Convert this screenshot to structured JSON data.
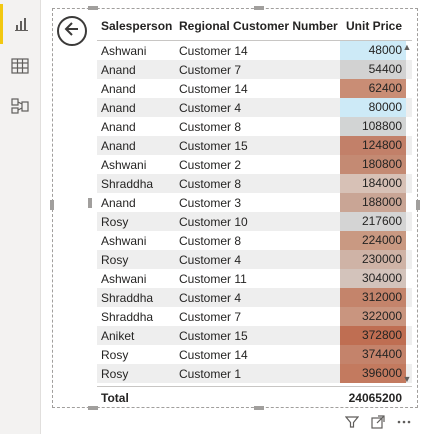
{
  "table": {
    "headers": [
      "Salesperson",
      "Regional Customer Number",
      "Unit Price"
    ],
    "rows": [
      {
        "salesperson": "Ashwani",
        "customer": "Customer 14",
        "price": "48000",
        "color": "#cdeaf7"
      },
      {
        "salesperson": "Anand",
        "customer": "Customer 7",
        "price": "54400",
        "color": "#d2d2d2"
      },
      {
        "salesperson": "Anand",
        "customer": "Customer 14",
        "price": "62400",
        "color": "#c98d75"
      },
      {
        "salesperson": "Anand",
        "customer": "Customer 4",
        "price": "80000",
        "color": "#cdeaf7"
      },
      {
        "salesperson": "Anand",
        "customer": "Customer 8",
        "price": "108800",
        "color": "#d2d4d4"
      },
      {
        "salesperson": "Anand",
        "customer": "Customer 15",
        "price": "124800",
        "color": "#c28069"
      },
      {
        "salesperson": "Ashwani",
        "customer": "Customer 2",
        "price": "180800",
        "color": "#c48a73"
      },
      {
        "salesperson": "Shraddha",
        "customer": "Customer 8",
        "price": "184000",
        "color": "#d7c1b6"
      },
      {
        "salesperson": "Anand",
        "customer": "Customer 3",
        "price": "188000",
        "color": "#c9a595"
      },
      {
        "salesperson": "Rosy",
        "customer": "Customer 10",
        "price": "217600",
        "color": "#d4d4d4"
      },
      {
        "salesperson": "Ashwani",
        "customer": "Customer 8",
        "price": "224000",
        "color": "#c99982"
      },
      {
        "salesperson": "Rosy",
        "customer": "Customer 4",
        "price": "230000",
        "color": "#cfb3a6"
      },
      {
        "salesperson": "Ashwani",
        "customer": "Customer 11",
        "price": "304000",
        "color": "#d3c3bb"
      },
      {
        "salesperson": "Shraddha",
        "customer": "Customer 4",
        "price": "312000",
        "color": "#c4846b"
      },
      {
        "salesperson": "Shraddha",
        "customer": "Customer 7",
        "price": "322000",
        "color": "#c9957f"
      },
      {
        "salesperson": "Aniket",
        "customer": "Customer 15",
        "price": "372800",
        "color": "#bf6e52"
      },
      {
        "salesperson": "Rosy",
        "customer": "Customer 14",
        "price": "374400",
        "color": "#c4836b"
      },
      {
        "salesperson": "Rosy",
        "customer": "Customer 1",
        "price": "396000",
        "color": "#c37a5f"
      }
    ],
    "total_label": "Total",
    "total_value": "24065200"
  },
  "rail": {
    "items": [
      {
        "icon": "report-icon",
        "active": true
      },
      {
        "icon": "table-icon",
        "active": false
      },
      {
        "icon": "model-icon",
        "active": false
      }
    ]
  },
  "footer": {
    "icons": [
      "filter-icon",
      "focus-mode-icon",
      "more-options-icon"
    ]
  }
}
